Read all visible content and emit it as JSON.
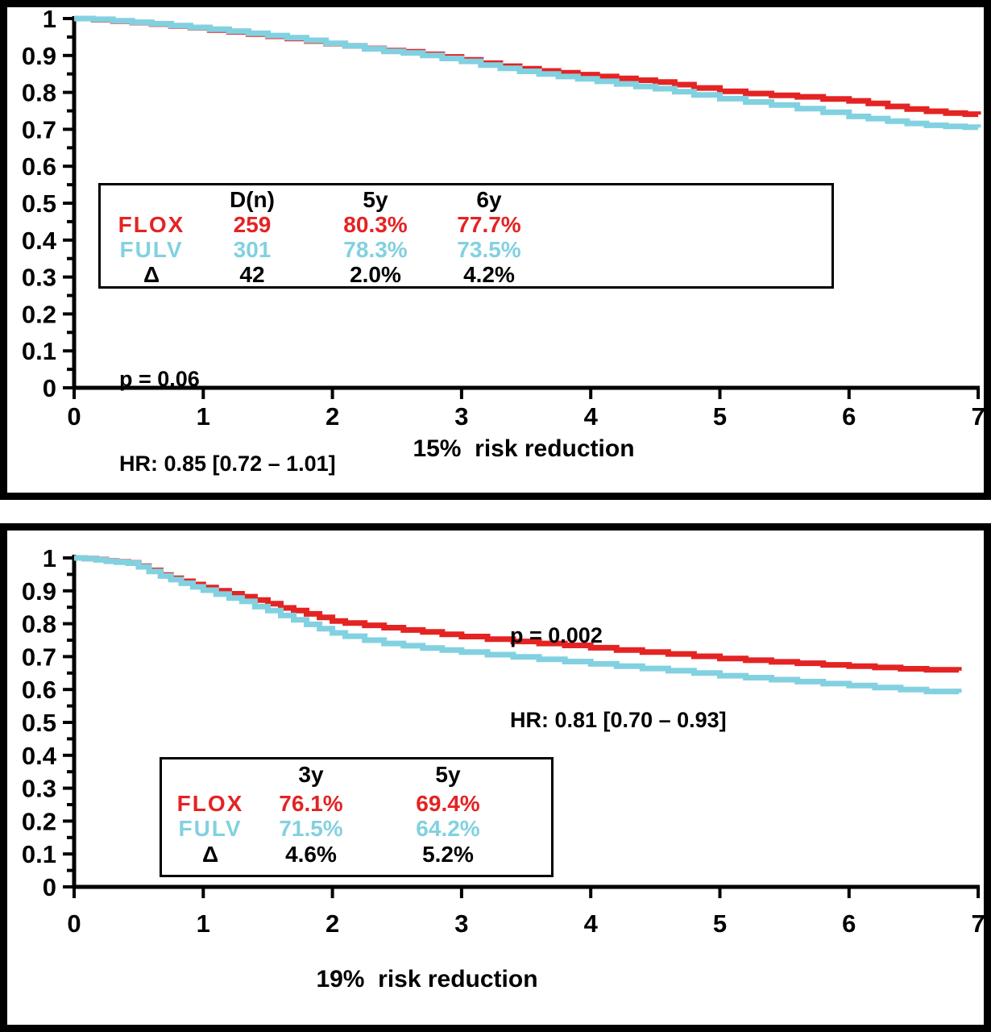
{
  "colors": {
    "flox_red": "#E42323",
    "fulv_cyan": "#82D1E0",
    "axis_black": "#000000",
    "background": "#FFFFFF"
  },
  "panels": [
    {
      "name": "top-survival-plot",
      "p_value": "p = 0.06",
      "hazard_ratio": "HR: 0.85 [0.72 – 1.01]",
      "x_axis_title": "15%  risk reduction",
      "legend": {
        "header": [
          "",
          "D(n)",
          "5y",
          "6y"
        ],
        "rows": [
          {
            "label": "FLOX",
            "values": [
              "259",
              "80.3%",
              "77.7%"
            ]
          },
          {
            "label": "FULV",
            "values": [
              "301",
              "78.3%",
              "73.5%"
            ]
          },
          {
            "label": "Δ",
            "values": [
              "42",
              "2.0%",
              "4.2%"
            ]
          }
        ]
      }
    },
    {
      "name": "bottom-survival-plot",
      "p_value": "p = 0.002",
      "hazard_ratio": "HR: 0.81 [0.70 – 0.93]",
      "x_axis_title": "19%  risk reduction",
      "legend": {
        "header": [
          "",
          "3y",
          "5y"
        ],
        "rows": [
          {
            "label": "FLOX",
            "values": [
              "76.1%",
              "69.4%"
            ]
          },
          {
            "label": "FULV",
            "values": [
              "71.5%",
              "64.2%"
            ]
          },
          {
            "label": "Δ",
            "values": [
              "4.6%",
              "5.2%"
            ]
          }
        ]
      }
    }
  ],
  "chart_data": [
    {
      "type": "line",
      "subtype": "kaplan-meier-step",
      "title": "",
      "xlabel": "15%  risk reduction",
      "ylabel": "",
      "xlim": [
        0,
        7
      ],
      "ylim": [
        0,
        1
      ],
      "xticks": [
        0,
        1,
        2,
        3,
        4,
        5,
        6,
        7
      ],
      "ytick_labels": [
        "0",
        "0.1",
        "0.2",
        "0.3",
        "0.4",
        "0.5",
        "0.6",
        "0.7",
        "0.8",
        "0.9",
        "1"
      ],
      "grid": false,
      "legend_position": "inside-left-middle",
      "annotations": [
        "p = 0.06",
        "HR: 0.85 [0.72 – 1.01]"
      ],
      "summary_table": {
        "columns": [
          "D(n)",
          "5y",
          "6y"
        ],
        "rows": [
          [
            "FLOX",
            "259",
            "80.3%",
            "77.7%"
          ],
          [
            "FULV",
            "301",
            "78.3%",
            "73.5%"
          ],
          [
            "Δ",
            "42",
            "2.0%",
            "4.2%"
          ]
        ]
      },
      "series": [
        {
          "name": "FLOX",
          "color": "#E42323",
          "points": [
            [
              0,
              1
            ],
            [
              0.15,
              0.997
            ],
            [
              0.3,
              0.993
            ],
            [
              0.45,
              0.989
            ],
            [
              0.6,
              0.985
            ],
            [
              0.75,
              0.98
            ],
            [
              0.9,
              0.975
            ],
            [
              1.05,
              0.969
            ],
            [
              1.2,
              0.964
            ],
            [
              1.35,
              0.958
            ],
            [
              1.5,
              0.952
            ],
            [
              1.65,
              0.946
            ],
            [
              1.8,
              0.939
            ],
            [
              1.95,
              0.932
            ],
            [
              2.1,
              0.926
            ],
            [
              2.25,
              0.919
            ],
            [
              2.4,
              0.913
            ],
            [
              2.55,
              0.91
            ],
            [
              2.7,
              0.903
            ],
            [
              2.85,
              0.896
            ],
            [
              3,
              0.888
            ],
            [
              3.15,
              0.879
            ],
            [
              3.3,
              0.871
            ],
            [
              3.45,
              0.864
            ],
            [
              3.6,
              0.858
            ],
            [
              3.75,
              0.853
            ],
            [
              3.9,
              0.848
            ],
            [
              4.05,
              0.843
            ],
            [
              4.2,
              0.838
            ],
            [
              4.35,
              0.833
            ],
            [
              4.5,
              0.828
            ],
            [
              4.65,
              0.821
            ],
            [
              4.8,
              0.812
            ],
            [
              5,
              0.803
            ],
            [
              5.2,
              0.797
            ],
            [
              5.4,
              0.792
            ],
            [
              5.6,
              0.788
            ],
            [
              5.8,
              0.782
            ],
            [
              6,
              0.777
            ],
            [
              6.15,
              0.77
            ],
            [
              6.3,
              0.762
            ],
            [
              6.45,
              0.755
            ],
            [
              6.6,
              0.749
            ],
            [
              6.75,
              0.744
            ],
            [
              6.9,
              0.741
            ],
            [
              7,
              0.74
            ]
          ]
        },
        {
          "name": "FULV",
          "color": "#82D1E0",
          "points": [
            [
              0,
              1
            ],
            [
              0.15,
              0.998
            ],
            [
              0.3,
              0.994
            ],
            [
              0.45,
              0.99
            ],
            [
              0.6,
              0.986
            ],
            [
              0.75,
              0.981
            ],
            [
              0.9,
              0.976
            ],
            [
              1.05,
              0.971
            ],
            [
              1.2,
              0.966
            ],
            [
              1.35,
              0.96
            ],
            [
              1.5,
              0.954
            ],
            [
              1.65,
              0.948
            ],
            [
              1.8,
              0.941
            ],
            [
              1.95,
              0.933
            ],
            [
              2.1,
              0.926
            ],
            [
              2.25,
              0.918
            ],
            [
              2.4,
              0.911
            ],
            [
              2.55,
              0.907
            ],
            [
              2.7,
              0.9
            ],
            [
              2.85,
              0.892
            ],
            [
              3,
              0.884
            ],
            [
              3.15,
              0.874
            ],
            [
              3.3,
              0.865
            ],
            [
              3.45,
              0.857
            ],
            [
              3.6,
              0.85
            ],
            [
              3.75,
              0.843
            ],
            [
              3.9,
              0.837
            ],
            [
              4.05,
              0.83
            ],
            [
              4.2,
              0.823
            ],
            [
              4.35,
              0.816
            ],
            [
              4.5,
              0.81
            ],
            [
              4.65,
              0.802
            ],
            [
              4.8,
              0.793
            ],
            [
              5,
              0.783
            ],
            [
              5.2,
              0.774
            ],
            [
              5.4,
              0.766
            ],
            [
              5.6,
              0.756
            ],
            [
              5.8,
              0.746
            ],
            [
              6,
              0.735
            ],
            [
              6.15,
              0.729
            ],
            [
              6.3,
              0.722
            ],
            [
              6.45,
              0.716
            ],
            [
              6.6,
              0.711
            ],
            [
              6.75,
              0.708
            ],
            [
              6.9,
              0.706
            ],
            [
              7,
              0.705
            ]
          ]
        }
      ]
    },
    {
      "type": "line",
      "subtype": "kaplan-meier-step",
      "title": "",
      "xlabel": "19%  risk reduction",
      "ylabel": "",
      "xlim": [
        0,
        7
      ],
      "ylim": [
        0,
        1
      ],
      "xticks": [
        0,
        1,
        2,
        3,
        4,
        5,
        6,
        7
      ],
      "ytick_labels": [
        "0",
        "0.1",
        "0.2",
        "0.3",
        "0.4",
        "0.5",
        "0.6",
        "0.7",
        "0.8",
        "0.9",
        "1"
      ],
      "grid": false,
      "legend_position": "inside-left-lower",
      "annotations": [
        "p = 0.002",
        "HR: 0.81 [0.70 – 0.93]"
      ],
      "summary_table": {
        "columns": [
          "3y",
          "5y"
        ],
        "rows": [
          [
            "FLOX",
            "76.1%",
            "69.4%"
          ],
          [
            "FULV",
            "71.5%",
            "64.2%"
          ],
          [
            "Δ",
            "4.6%",
            "5.2%"
          ]
        ]
      },
      "series": [
        {
          "name": "FLOX",
          "color": "#E42323",
          "points": [
            [
              0,
              1
            ],
            [
              0.08,
              0.998
            ],
            [
              0.17,
              0.995
            ],
            [
              0.25,
              0.991
            ],
            [
              0.33,
              0.988
            ],
            [
              0.42,
              0.985
            ],
            [
              0.5,
              0.975
            ],
            [
              0.58,
              0.962
            ],
            [
              0.67,
              0.948
            ],
            [
              0.75,
              0.938
            ],
            [
              0.83,
              0.929
            ],
            [
              0.92,
              0.919
            ],
            [
              1,
              0.91
            ],
            [
              1.1,
              0.9
            ],
            [
              1.2,
              0.891
            ],
            [
              1.3,
              0.882
            ],
            [
              1.4,
              0.872
            ],
            [
              1.5,
              0.861
            ],
            [
              1.6,
              0.848
            ],
            [
              1.7,
              0.84
            ],
            [
              1.8,
              0.83
            ],
            [
              1.9,
              0.819
            ],
            [
              2,
              0.808
            ],
            [
              2.1,
              0.802
            ],
            [
              2.25,
              0.795
            ],
            [
              2.4,
              0.788
            ],
            [
              2.55,
              0.781
            ],
            [
              2.7,
              0.775
            ],
            [
              2.85,
              0.768
            ],
            [
              3,
              0.761
            ],
            [
              3.2,
              0.753
            ],
            [
              3.4,
              0.746
            ],
            [
              3.6,
              0.74
            ],
            [
              3.8,
              0.734
            ],
            [
              4,
              0.727
            ],
            [
              4.2,
              0.72
            ],
            [
              4.4,
              0.714
            ],
            [
              4.6,
              0.708
            ],
            [
              4.8,
              0.701
            ],
            [
              5,
              0.694
            ],
            [
              5.2,
              0.689
            ],
            [
              5.4,
              0.684
            ],
            [
              5.6,
              0.68
            ],
            [
              5.8,
              0.675
            ],
            [
              6,
              0.671
            ],
            [
              6.2,
              0.667
            ],
            [
              6.4,
              0.663
            ],
            [
              6.6,
              0.66
            ],
            [
              6.85,
              0.657
            ]
          ]
        },
        {
          "name": "FULV",
          "color": "#82D1E0",
          "points": [
            [
              0,
              1
            ],
            [
              0.08,
              0.998
            ],
            [
              0.17,
              0.994
            ],
            [
              0.25,
              0.99
            ],
            [
              0.33,
              0.987
            ],
            [
              0.42,
              0.984
            ],
            [
              0.5,
              0.973
            ],
            [
              0.58,
              0.959
            ],
            [
              0.67,
              0.945
            ],
            [
              0.75,
              0.934
            ],
            [
              0.83,
              0.923
            ],
            [
              0.92,
              0.912
            ],
            [
              1,
              0.902
            ],
            [
              1.1,
              0.89
            ],
            [
              1.2,
              0.878
            ],
            [
              1.3,
              0.868
            ],
            [
              1.4,
              0.852
            ],
            [
              1.5,
              0.84
            ],
            [
              1.6,
              0.825
            ],
            [
              1.7,
              0.812
            ],
            [
              1.8,
              0.798
            ],
            [
              1.9,
              0.785
            ],
            [
              2,
              0.772
            ],
            [
              2.1,
              0.762
            ],
            [
              2.25,
              0.75
            ],
            [
              2.4,
              0.74
            ],
            [
              2.55,
              0.733
            ],
            [
              2.7,
              0.726
            ],
            [
              2.85,
              0.72
            ],
            [
              3,
              0.714
            ],
            [
              3.2,
              0.706
            ],
            [
              3.4,
              0.699
            ],
            [
              3.6,
              0.692
            ],
            [
              3.8,
              0.685
            ],
            [
              4,
              0.678
            ],
            [
              4.2,
              0.671
            ],
            [
              4.4,
              0.664
            ],
            [
              4.6,
              0.657
            ],
            [
              4.8,
              0.65
            ],
            [
              5,
              0.642
            ],
            [
              5.2,
              0.636
            ],
            [
              5.4,
              0.63
            ],
            [
              5.6,
              0.624
            ],
            [
              5.8,
              0.618
            ],
            [
              6,
              0.612
            ],
            [
              6.2,
              0.606
            ],
            [
              6.4,
              0.6
            ],
            [
              6.6,
              0.594
            ],
            [
              6.85,
              0.59
            ]
          ]
        }
      ]
    }
  ]
}
